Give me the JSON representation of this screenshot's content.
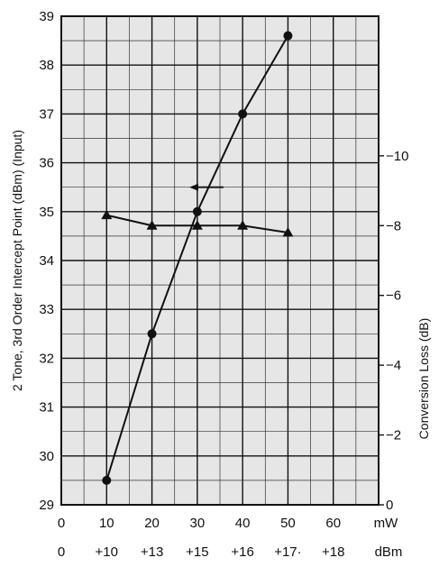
{
  "chart_data": {
    "type": "line",
    "ylabel_left": "2 Tone, 3rd Order Intercept Point (dBm)  (Input)",
    "ylabel_right": "Conversion Loss (dB)",
    "ylim_left": [
      29,
      39
    ],
    "ylim_right": [
      0,
      -14
    ],
    "left_yticks": [
      "29",
      "30",
      "31",
      "32",
      "33",
      "34",
      "35",
      "36",
      "37",
      "38",
      "39"
    ],
    "right_yticks": [
      "0",
      "−2",
      "−4",
      "−6",
      "−8",
      "−10"
    ],
    "xlim": [
      0,
      70
    ],
    "x_mw_ticks": [
      "0",
      "10",
      "20",
      "30",
      "40",
      "50",
      "60"
    ],
    "x_mw_unit": "mW",
    "x_dbm_ticks": [
      "0",
      "+10",
      "+13",
      "+15",
      "+16",
      "+17·",
      "+18"
    ],
    "x_dbm_unit": "dBm",
    "grid": true,
    "series": [
      {
        "marker": "circle",
        "axis": "left",
        "points": [
          [
            10,
            29.5
          ],
          [
            20,
            32.5
          ],
          [
            30,
            35.0
          ],
          [
            40,
            37.0
          ],
          [
            50,
            38.6
          ]
        ]
      },
      {
        "marker": "triangle",
        "axis": "right",
        "points": [
          [
            10,
            -8.3
          ],
          [
            20,
            -8.0
          ],
          [
            30,
            -8.0
          ],
          [
            40,
            -8.0
          ],
          [
            50,
            -7.8
          ]
        ]
      }
    ],
    "annotations": [
      {
        "type": "arrow",
        "direction": "left",
        "x": 33,
        "y": 35.5
      }
    ]
  }
}
